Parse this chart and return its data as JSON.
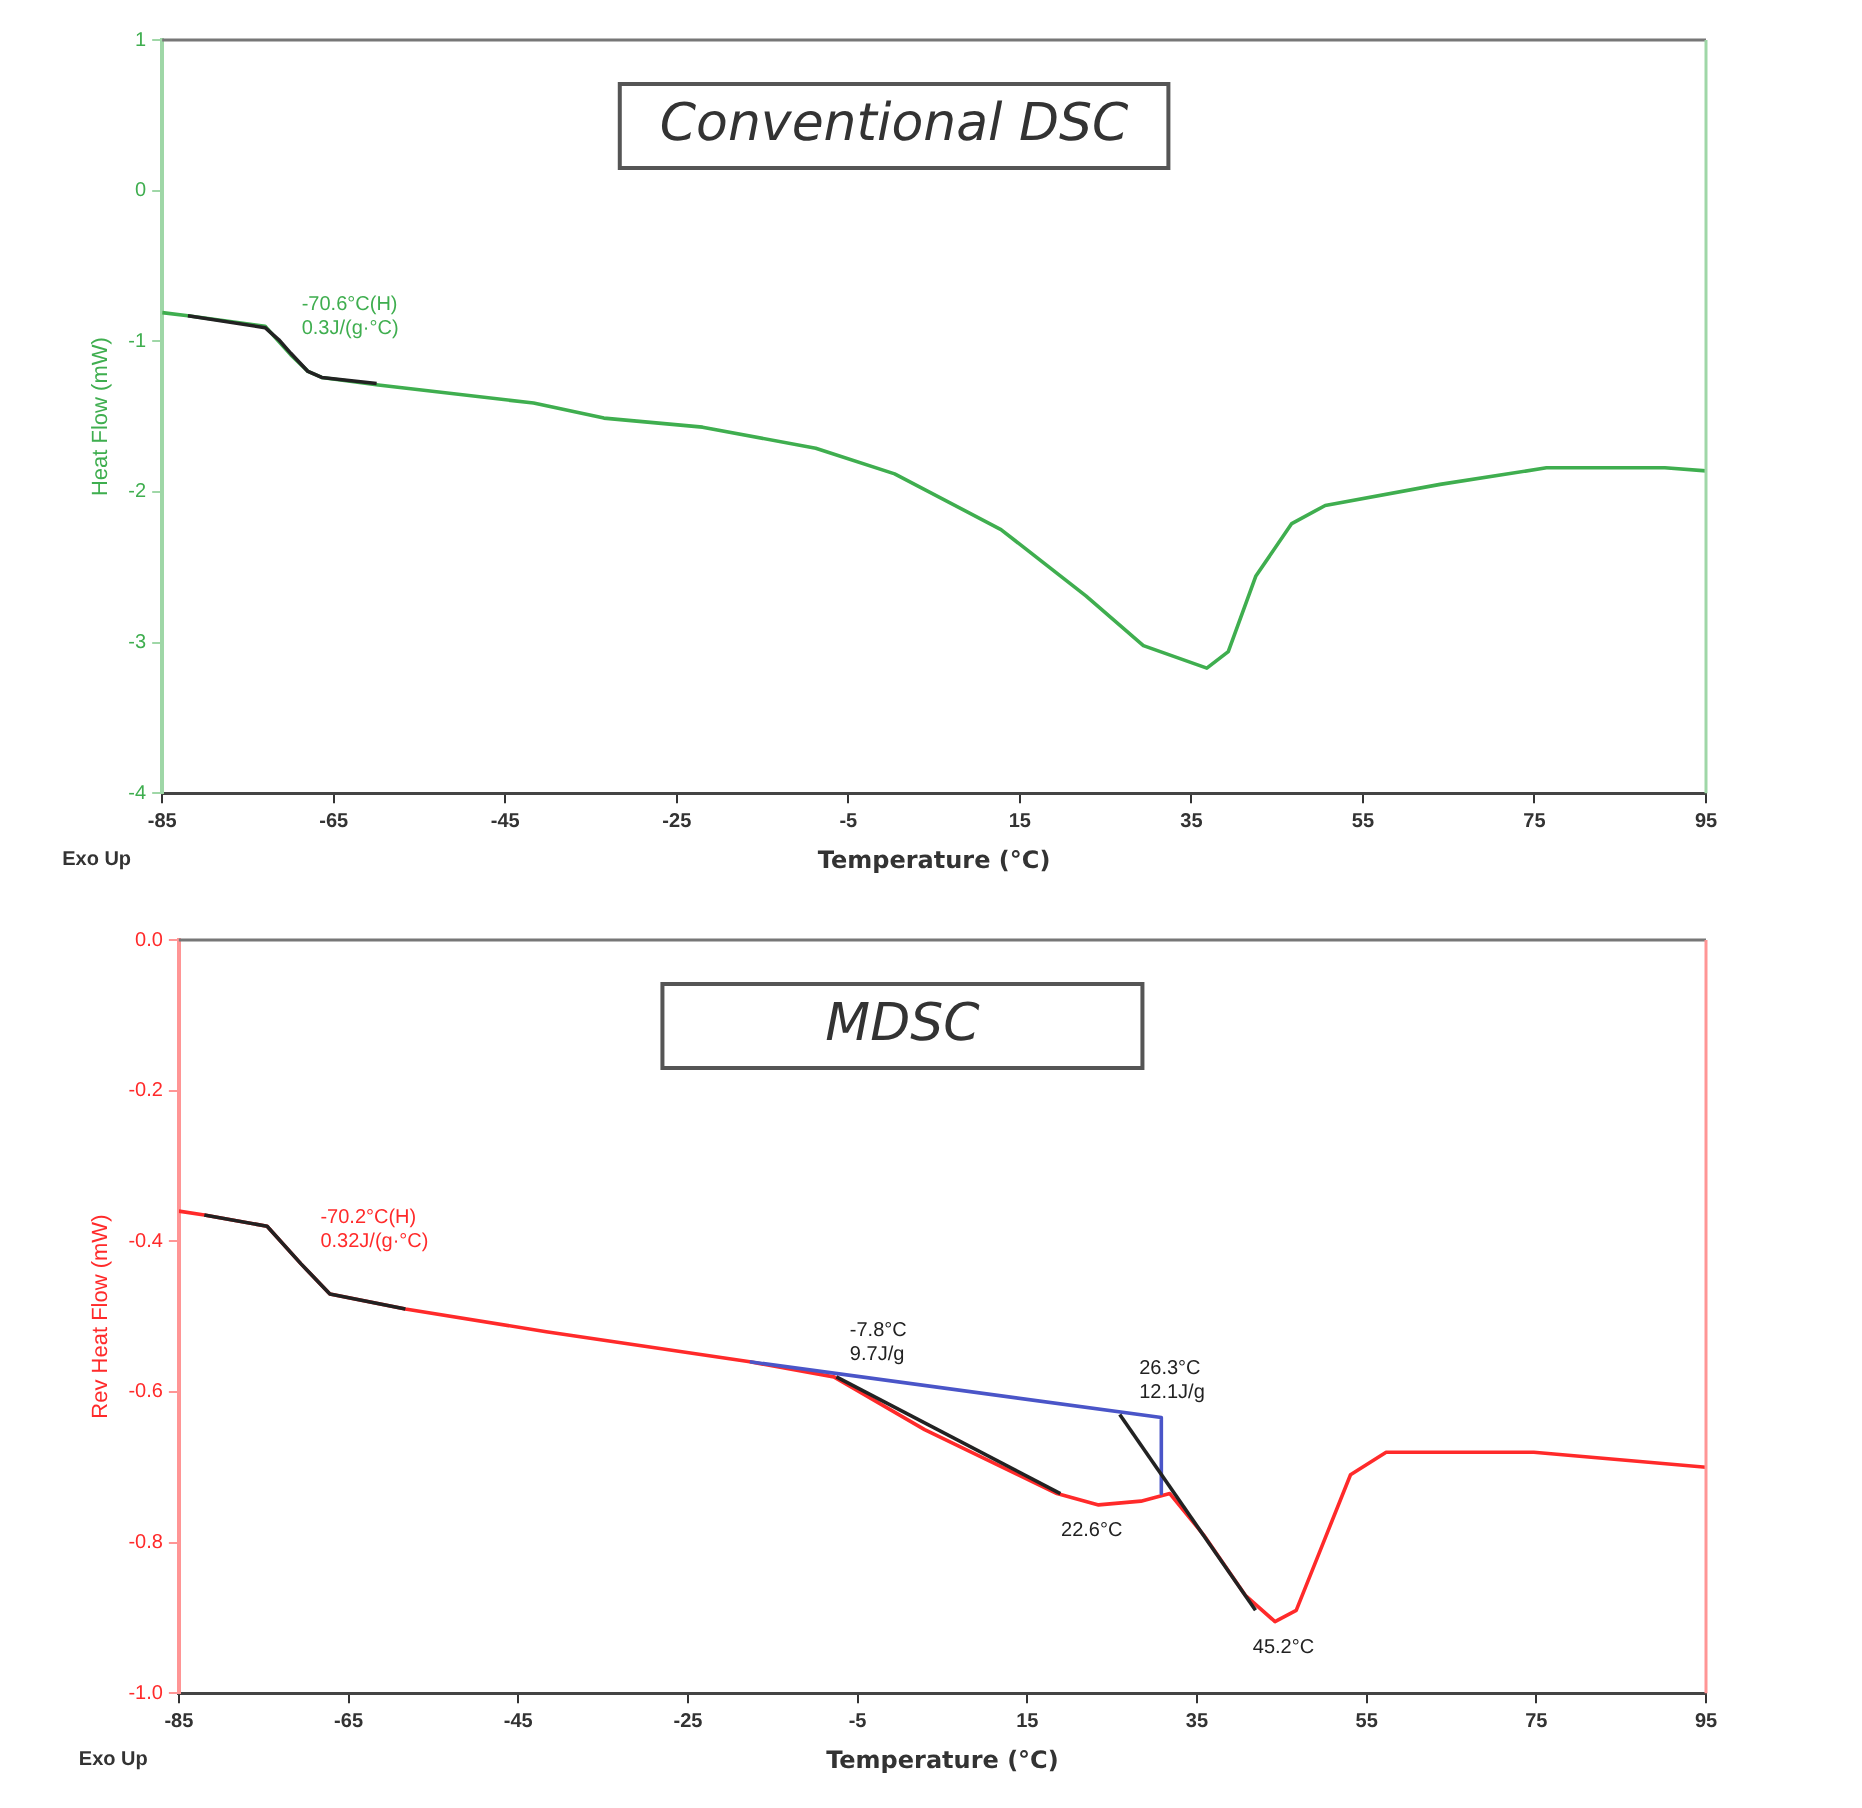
{
  "chart_data": [
    {
      "type": "line",
      "title": "Conventional DSC",
      "xlabel": "Temperature (°C)",
      "ylabel": "Heat Flow (mW)",
      "xlim": [
        -85,
        95
      ],
      "ylim": [
        -4,
        1
      ],
      "xticks": [
        -85,
        -65,
        -45,
        -25,
        -5,
        15,
        35,
        55,
        75,
        95
      ],
      "yticks": [
        -4,
        -3,
        -2,
        -1,
        0,
        1
      ],
      "grid": false,
      "legend": false,
      "marker": "none",
      "line_style": "solid",
      "series": [
        {
          "color": "#3fae4f",
          "x": [
            -85,
            -82,
            -73,
            -70,
            -68,
            -66.4,
            -59.8,
            -41.7,
            -33.5,
            -22,
            -8.8,
            0.4,
            12.8,
            22.7,
            29.4,
            36.8,
            39.3,
            42.5,
            46.7,
            50.6,
            64,
            76.4,
            90.2,
            95
          ],
          "values": [
            -0.81,
            -0.83,
            -0.9,
            -1.09,
            -1.2,
            -1.24,
            -1.29,
            -1.41,
            -1.51,
            -1.57,
            -1.71,
            -1.88,
            -2.25,
            -2.69,
            -3.02,
            -3.17,
            -3.06,
            -2.56,
            -2.21,
            -2.09,
            -1.95,
            -1.84,
            -1.84,
            -1.86
          ]
        },
        {
          "color": "#222222",
          "x": [
            -82,
            -73,
            -71.4,
            -70,
            -68,
            -66.4,
            -60
          ],
          "values": [
            -0.83,
            -0.91,
            -0.99,
            -1.08,
            -1.2,
            -1.24,
            -1.28
          ]
        }
      ],
      "annotations": [
        "Exo Up",
        {
          "text": "-70.6°C(H)\n0.3J/(g·°C)",
          "x": -70.6,
          "y": -1.06
        }
      ]
    },
    {
      "type": "line",
      "title": "MDSC",
      "xlabel": "Temperature (°C)",
      "ylabel": "Rev Heat Flow (mW)",
      "xlim": [
        -85,
        95
      ],
      "ylim": [
        -1,
        0
      ],
      "xticks": [
        -85,
        -65,
        -45,
        -25,
        -5,
        15,
        35,
        55,
        75,
        95
      ],
      "yticks": [
        {
          "value": -1,
          "label": "-1.0"
        },
        {
          "value": -0.8,
          "label": "-0.8"
        },
        {
          "value": -0.6,
          "label": "-0.6"
        },
        {
          "value": -0.4,
          "label": "-0.4"
        },
        {
          "value": -0.2,
          "label": "-0.2"
        },
        {
          "value": 0,
          "label": "0.0"
        }
      ],
      "grid": false,
      "legend": false,
      "marker": "none",
      "line_style": "solid",
      "series": [
        {
          "color": "#ff2a2a",
          "x": [
            -85,
            -82,
            -74.6,
            -70.6,
            -67.2,
            -58.3,
            -41.7,
            -17.7,
            -7.8,
            2.9,
            18.5,
            23.4,
            28.4,
            31.8,
            35.8,
            40.7,
            44.2,
            46.7,
            49.9,
            53.1,
            57.3,
            67.2,
            74.7,
            95
          ],
          "values": [
            -0.36,
            -0.365,
            -0.38,
            -0.43,
            -0.47,
            -0.49,
            -0.52,
            -0.56,
            -0.58,
            -0.65,
            -0.735,
            -0.75,
            -0.745,
            -0.735,
            -0.79,
            -0.87,
            -0.905,
            -0.89,
            -0.8,
            -0.71,
            -0.68,
            -0.68,
            -0.68,
            -0.7
          ]
        },
        {
          "color": "#222222",
          "x": [
            -82,
            -74.6,
            -70.6,
            -67.2,
            -58.3
          ],
          "values": [
            -0.365,
            -0.38,
            -0.43,
            -0.47,
            -0.49
          ]
        },
        {
          "color": "#4a55c8",
          "x": [
            -17.7,
            30.8,
            30.8
          ],
          "values": [
            -0.56,
            -0.634,
            -0.735
          ]
        },
        {
          "color": "#222222",
          "x": [
            -7.5,
            18.9
          ],
          "values": [
            -0.58,
            -0.735
          ]
        },
        {
          "color": "#222222",
          "x": [
            25.9,
            41.9
          ],
          "values": [
            -0.63,
            -0.89
          ]
        }
      ],
      "annotations": [
        "Exo Up",
        {
          "text": "-70.2°C(H)\n0.32J/(g·°C)",
          "x": -70.2,
          "y": -0.43
        },
        {
          "text": "-7.8°C\n9.7J/g",
          "x": -7.8,
          "y": -0.58
        },
        {
          "text": "26.3°C\n12.1J/g",
          "x": 26.3,
          "y": -0.63
        },
        {
          "text": "22.6°C",
          "x": 22.6,
          "y": -0.75
        },
        {
          "text": "45.2°C",
          "x": 45.2,
          "y": -0.905
        }
      ]
    }
  ]
}
